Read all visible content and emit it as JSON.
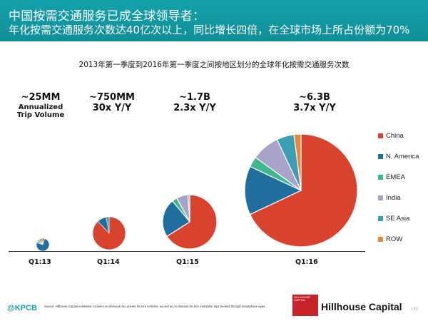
{
  "header": {
    "line1": "中国按需交通服务已成全球领导者：",
    "line2": "年化按需交通服务次数达40亿次以上，同比增长四倍，在全球市场上所占份额为70%"
  },
  "chart_data": {
    "type": "pie",
    "title": "2013年第一季度到2016年第一季度之间按地区划分的全球年化按需交通服务次数",
    "legend": [
      "China",
      "N. America",
      "EMEA",
      "India",
      "SE Asia",
      "ROW"
    ],
    "colors": [
      "#d9432d",
      "#1f6e9e",
      "#3fb68b",
      "#a9a3c9",
      "#3a9fb5",
      "#e8883a"
    ],
    "pies": [
      {
        "label": "Q1:13",
        "volume": "~25MM",
        "volume_note_line1": "Annualized",
        "volume_note_line2": "Trip Volume",
        "shares": [
          0.05,
          0.75,
          0.05,
          0.05,
          0.05,
          0.05
        ]
      },
      {
        "label": "Q1:14",
        "volume": "~750MM",
        "growth": "30x Y/Y",
        "shares": [
          0.88,
          0.09,
          0.0,
          0.0,
          0.03,
          0.0
        ]
      },
      {
        "label": "Q1:15",
        "volume": "~1.7B",
        "growth": "2.3x Y/Y",
        "shares": [
          0.66,
          0.23,
          0.03,
          0.07,
          0.01,
          0.0
        ]
      },
      {
        "label": "Q1:16",
        "volume": "~6.3B",
        "growth": "3.7x Y/Y",
        "shares": [
          0.68,
          0.14,
          0.03,
          0.08,
          0.05,
          0.02
        ]
      }
    ]
  },
  "footer": {
    "brand": "@KPCB",
    "source": "Source: Hillhouse Capital estimates; includes on-demand taxi, private for-hire vehicles, as well as on-demand for-hire motorbike trips booked through smartphone apps.",
    "logo_small": "HILLHOUSE CAPITAL",
    "logo_text": "Hillhouse Capital",
    "page": "180"
  }
}
